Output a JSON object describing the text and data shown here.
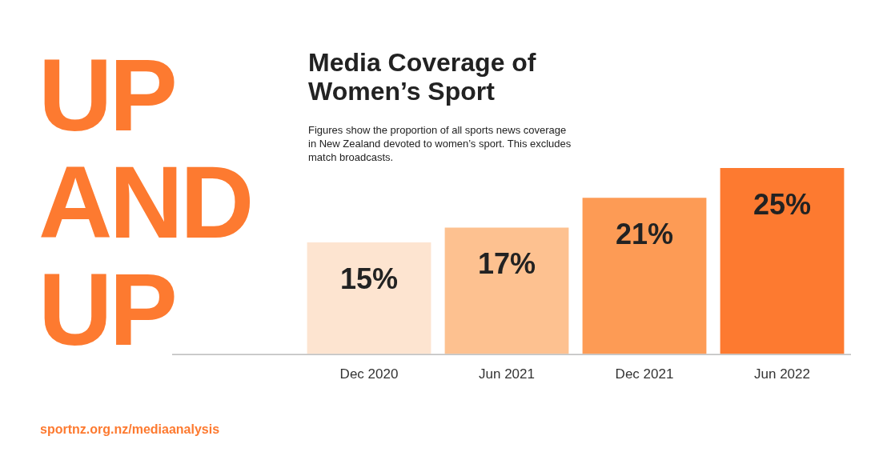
{
  "chart_data": {
    "type": "bar",
    "title": "Media Coverage of Women’s Sport",
    "subtitle": "Figures show the proportion of all sports news coverage in New Zealand devoted to women’s sport. This excludes match broadcasts.",
    "annotations": [
      "UP AND UP",
      "sportnz.org.nz/mediaanalysis"
    ],
    "categories": [
      "Dec 2020",
      "Jun 2021",
      "Dec 2021",
      "Jun 2022"
    ],
    "values": [
      15,
      17,
      21,
      25
    ],
    "colors": [
      "#fde4d0",
      "#fdc190",
      "#fd9b55",
      "#fd7a30"
    ],
    "value_labels": [
      "15%",
      "17%",
      "21%",
      "25%"
    ],
    "legend": false
  }
}
